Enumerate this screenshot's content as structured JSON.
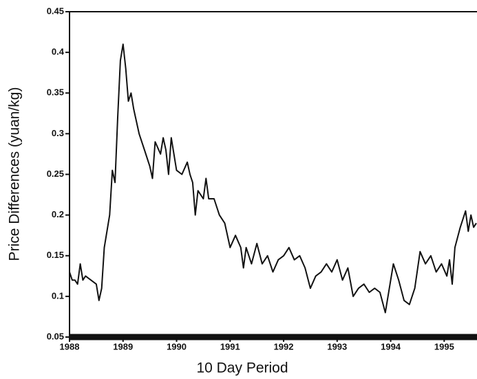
{
  "chart_data": {
    "type": "line",
    "xlabel": "10 Day Period",
    "ylabel": "Price Differences (yuan/kg)",
    "x": [
      1988.0,
      1988.05,
      1988.1,
      1988.15,
      1988.2,
      1988.25,
      1988.3,
      1988.4,
      1988.5,
      1988.55,
      1988.6,
      1988.65,
      1988.75,
      1988.8,
      1988.85,
      1988.9,
      1988.95,
      1989.0,
      1989.05,
      1989.1,
      1989.15,
      1989.2,
      1989.3,
      1989.4,
      1989.5,
      1989.55,
      1989.6,
      1989.7,
      1989.75,
      1989.8,
      1989.85,
      1989.9,
      1990.0,
      1990.1,
      1990.2,
      1990.25,
      1990.3,
      1990.35,
      1990.4,
      1990.5,
      1990.55,
      1990.6,
      1990.7,
      1990.8,
      1990.9,
      1991.0,
      1991.1,
      1991.2,
      1991.25,
      1991.3,
      1991.4,
      1991.5,
      1991.6,
      1991.7,
      1991.8,
      1991.9,
      1992.0,
      1992.1,
      1992.2,
      1992.3,
      1992.4,
      1992.5,
      1992.6,
      1992.7,
      1992.8,
      1992.9,
      1993.0,
      1993.1,
      1993.2,
      1993.3,
      1993.4,
      1993.5,
      1993.6,
      1993.7,
      1993.8,
      1993.9,
      1994.0,
      1994.05,
      1994.15,
      1994.25,
      1994.35,
      1994.45,
      1994.55,
      1994.65,
      1994.75,
      1994.85,
      1994.95,
      1995.05,
      1995.1,
      1995.15,
      1995.2,
      1995.3,
      1995.4,
      1995.45,
      1995.5,
      1995.55,
      1995.6
    ],
    "series": [
      {
        "color": "#111111",
        "values": [
          0.13,
          0.12,
          0.12,
          0.115,
          0.14,
          0.12,
          0.125,
          0.12,
          0.115,
          0.095,
          0.11,
          0.16,
          0.2,
          0.255,
          0.24,
          0.32,
          0.39,
          0.41,
          0.38,
          0.34,
          0.35,
          0.33,
          0.3,
          0.28,
          0.26,
          0.245,
          0.29,
          0.275,
          0.295,
          0.28,
          0.25,
          0.295,
          0.255,
          0.25,
          0.265,
          0.25,
          0.24,
          0.2,
          0.23,
          0.22,
          0.245,
          0.22,
          0.22,
          0.2,
          0.19,
          0.16,
          0.175,
          0.16,
          0.135,
          0.16,
          0.14,
          0.165,
          0.14,
          0.15,
          0.13,
          0.145,
          0.15,
          0.16,
          0.145,
          0.15,
          0.135,
          0.11,
          0.125,
          0.13,
          0.14,
          0.13,
          0.145,
          0.12,
          0.135,
          0.1,
          0.11,
          0.115,
          0.105,
          0.11,
          0.105,
          0.08,
          0.12,
          0.14,
          0.12,
          0.095,
          0.09,
          0.11,
          0.155,
          0.14,
          0.15,
          0.13,
          0.14,
          0.125,
          0.145,
          0.115,
          0.16,
          0.185,
          0.205,
          0.18,
          0.2,
          0.185,
          0.19
        ]
      }
    ],
    "xlim": [
      1988,
      1995.6
    ],
    "xticks": [
      1988,
      1989,
      1990,
      1991,
      1992,
      1993,
      1994,
      1995
    ],
    "ylim": [
      0.05,
      0.45
    ],
    "yticks": [
      0.05,
      0.1,
      0.15,
      0.2,
      0.25,
      0.3,
      0.35,
      0.4,
      0.45
    ]
  }
}
